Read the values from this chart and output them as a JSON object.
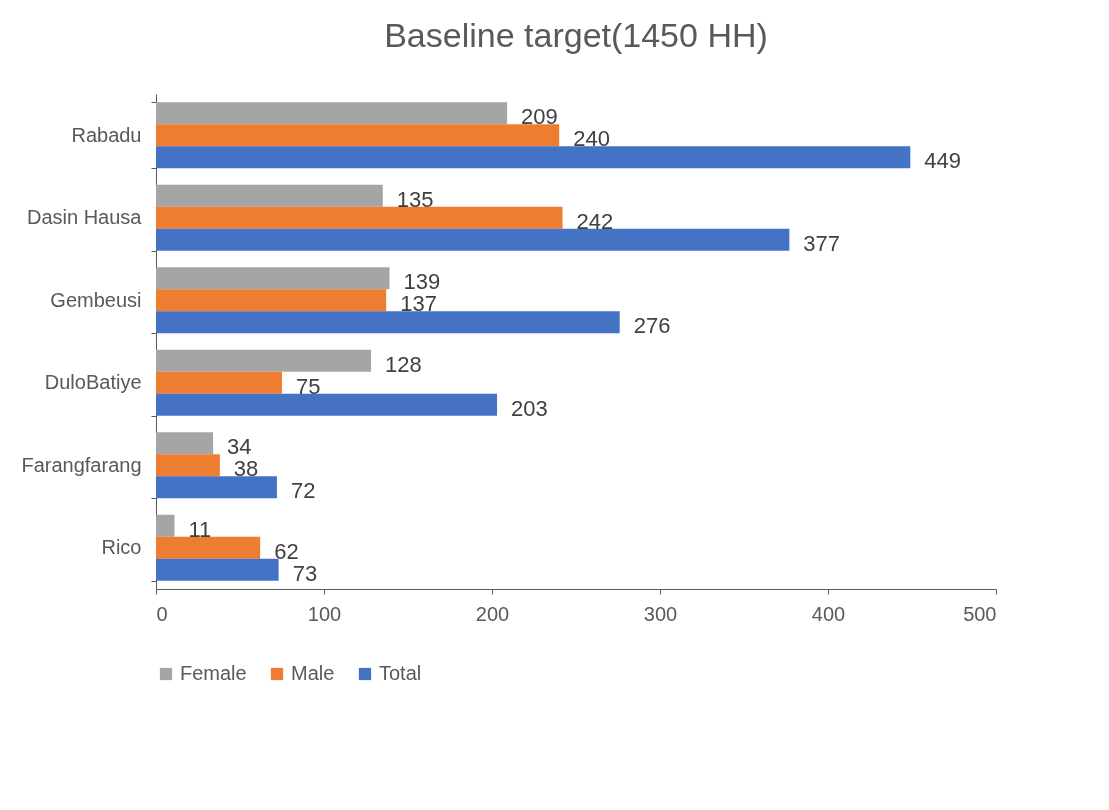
{
  "chart_data": {
    "type": "bar",
    "orientation": "horizontal",
    "title": "Baseline target(1450 HH)",
    "categories": [
      "Rabadu",
      "Dasin Hausa",
      "Gembeusi",
      "DuloBatiye",
      "Farangfarang",
      "Rico"
    ],
    "series": [
      {
        "name": "Female",
        "color": "#a5a5a5",
        "values": [
          209,
          135,
          139,
          128,
          34,
          11
        ]
      },
      {
        "name": "Male",
        "color": "#ed7d31",
        "values": [
          240,
          242,
          137,
          75,
          38,
          62
        ]
      },
      {
        "name": "Total",
        "color": "#4472c4",
        "values": [
          449,
          377,
          276,
          203,
          72,
          73
        ]
      }
    ],
    "xlim": [
      0,
      500
    ],
    "xticks": [
      0,
      100,
      200,
      300,
      400,
      500
    ],
    "data_labels": true,
    "legend": "bottom",
    "grid": false
  }
}
